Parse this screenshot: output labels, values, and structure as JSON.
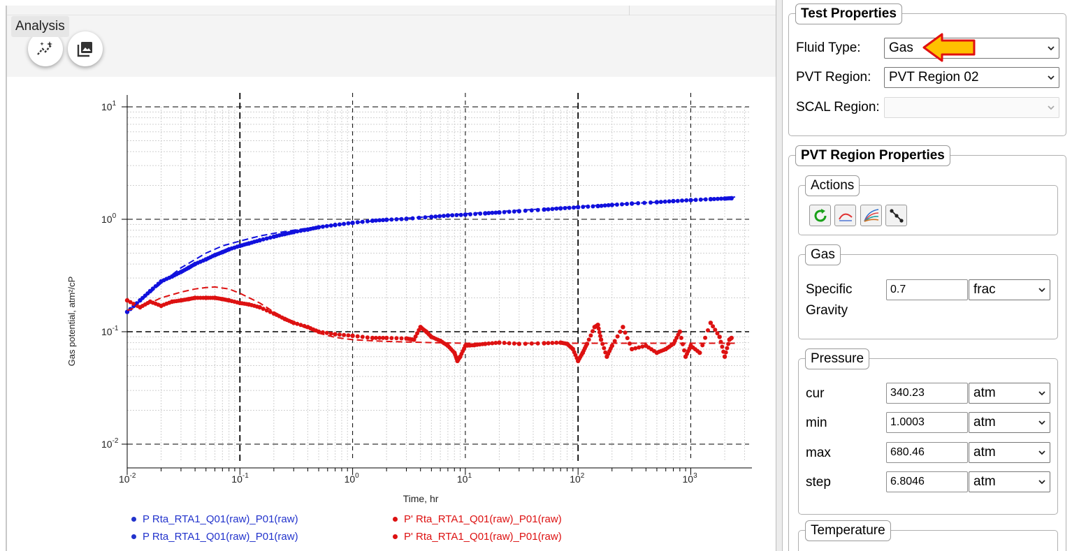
{
  "app": {
    "title": "Analysis"
  },
  "toolbar": {
    "wand_icon": "analysis-wand-icon",
    "image_icon": "image-icon"
  },
  "chart_data": {
    "type": "scatter",
    "xlabel": "Time, hr",
    "ylabel": "Gas potential, atm²/cP",
    "x_scale": "log",
    "y_scale": "log",
    "xlim": [
      0.01,
      3000
    ],
    "ylim": [
      0.01,
      10
    ],
    "x_ticks": [
      {
        "base": "10",
        "exp": "-2"
      },
      {
        "base": "10",
        "exp": "-1"
      },
      {
        "base": "10",
        "exp": "0"
      },
      {
        "base": "10",
        "exp": "1"
      },
      {
        "base": "10",
        "exp": "2"
      },
      {
        "base": "10",
        "exp": "3"
      }
    ],
    "y_ticks": [
      {
        "base": "10",
        "exp": "1"
      },
      {
        "base": "10",
        "exp": "0"
      },
      {
        "base": "10",
        "exp": "-1"
      },
      {
        "base": "10",
        "exp": "-2"
      }
    ],
    "grid": true,
    "series": [
      {
        "name": "P Rta_RTA1_Q01(raw)_P01(raw)",
        "color": "#1111dd",
        "style": "points",
        "x": [
          0.01,
          0.013,
          0.016,
          0.02,
          0.025,
          0.03,
          0.035,
          0.04,
          0.05,
          0.06,
          0.07,
          0.08,
          0.1,
          0.12,
          0.15,
          0.2,
          0.25,
          0.3,
          0.4,
          0.5,
          0.7,
          1,
          1.5,
          2,
          3,
          5,
          7,
          10,
          15,
          20,
          30,
          50,
          70,
          100,
          150,
          200,
          300,
          500,
          700,
          1000,
          1500,
          2000,
          2300
        ],
        "y": [
          0.15,
          0.19,
          0.23,
          0.28,
          0.31,
          0.34,
          0.37,
          0.4,
          0.44,
          0.48,
          0.51,
          0.54,
          0.58,
          0.61,
          0.65,
          0.7,
          0.74,
          0.77,
          0.81,
          0.85,
          0.89,
          0.93,
          0.97,
          0.99,
          1.01,
          1.05,
          1.08,
          1.1,
          1.13,
          1.15,
          1.18,
          1.22,
          1.25,
          1.28,
          1.31,
          1.34,
          1.38,
          1.42,
          1.45,
          1.48,
          1.51,
          1.53,
          1.54
        ]
      },
      {
        "name": "P' Rta_RTA1_Q01(raw)_P01(raw)",
        "color": "#dd1111",
        "style": "points",
        "x": [
          0.01,
          0.013,
          0.016,
          0.02,
          0.025,
          0.03,
          0.035,
          0.04,
          0.05,
          0.06,
          0.07,
          0.08,
          0.1,
          0.12,
          0.15,
          0.2,
          0.25,
          0.3,
          0.4,
          0.5,
          0.7,
          1,
          1.5,
          2,
          3,
          3.5,
          4,
          4.5,
          5,
          6,
          7,
          8,
          8.5,
          9,
          10,
          12,
          15,
          20,
          30,
          50,
          70,
          80,
          90,
          100,
          110,
          120,
          140,
          150,
          160,
          180,
          200,
          250,
          300,
          400,
          500,
          600,
          700,
          800,
          900,
          1000,
          1200,
          1500,
          1800,
          2000,
          2200,
          2300
        ],
        "y": [
          0.19,
          0.165,
          0.185,
          0.17,
          0.185,
          0.19,
          0.195,
          0.2,
          0.2,
          0.2,
          0.195,
          0.19,
          0.18,
          0.175,
          0.165,
          0.145,
          0.13,
          0.12,
          0.11,
          0.1,
          0.095,
          0.092,
          0.088,
          0.088,
          0.087,
          0.085,
          0.11,
          0.1,
          0.09,
          0.083,
          0.075,
          0.065,
          0.055,
          0.06,
          0.075,
          0.076,
          0.078,
          0.08,
          0.078,
          0.079,
          0.08,
          0.078,
          0.07,
          0.055,
          0.065,
          0.078,
          0.11,
          0.115,
          0.085,
          0.06,
          0.075,
          0.11,
          0.07,
          0.075,
          0.065,
          0.07,
          0.078,
          0.1,
          0.06,
          0.075,
          0.065,
          0.12,
          0.09,
          0.06,
          0.085,
          0.088
        ]
      },
      {
        "name": "P Rta_RTA1_Q01(raw)_P01(raw)",
        "color": "#1111dd",
        "style": "dashed",
        "x": [
          0.01,
          0.015,
          0.02,
          0.03,
          0.05,
          0.07,
          0.1,
          0.15,
          0.2,
          0.3,
          0.5,
          1,
          2,
          5,
          10,
          20,
          50,
          100,
          200,
          500,
          1000,
          2000,
          2500
        ],
        "y": [
          0.15,
          0.21,
          0.27,
          0.37,
          0.5,
          0.58,
          0.64,
          0.71,
          0.75,
          0.8,
          0.86,
          0.93,
          0.99,
          1.06,
          1.12,
          1.17,
          1.24,
          1.3,
          1.35,
          1.42,
          1.48,
          1.55,
          1.58
        ]
      },
      {
        "name": "P' Rta_RTA1_Q01(raw)_P01(raw)",
        "color": "#dd1111",
        "style": "dashed",
        "x": [
          0.01,
          0.015,
          0.02,
          0.03,
          0.04,
          0.05,
          0.06,
          0.08,
          0.1,
          0.15,
          0.2,
          0.3,
          0.5,
          0.7,
          1,
          1.5,
          2,
          3,
          5,
          10,
          20,
          50,
          100,
          200,
          500,
          1000,
          2000,
          2500
        ],
        "y": [
          0.155,
          0.175,
          0.2,
          0.225,
          0.24,
          0.247,
          0.25,
          0.24,
          0.22,
          0.18,
          0.15,
          0.12,
          0.097,
          0.089,
          0.085,
          0.083,
          0.082,
          0.081,
          0.08,
          0.079,
          0.079,
          0.079,
          0.079,
          0.079,
          0.079,
          0.079,
          0.079,
          0.079
        ]
      }
    ]
  },
  "legend_items": [
    {
      "text": "P Rta_RTA1_Q01(raw)_P01(raw)",
      "color": "#2233cc"
    },
    {
      "text": "P Rta_RTA1_Q01(raw)_P01(raw)",
      "color": "#2233cc"
    },
    {
      "text": "P' Rta_RTA1_Q01(raw)_P01(raw)",
      "color": "#dd1111"
    },
    {
      "text": "P' Rta_RTA1_Q01(raw)_P01(raw)",
      "color": "#dd1111"
    }
  ],
  "test_properties": {
    "title": "Test Properties",
    "fluid_type_label": "Fluid Type:",
    "fluid_type_value": "Gas",
    "pvt_region_label": "PVT Region:",
    "pvt_region_value": "PVT Region 02",
    "scal_region_label": "SCAL Region:",
    "scal_region_value": ""
  },
  "pvt_region_properties": {
    "title": "PVT Region Properties",
    "actions": {
      "title": "Actions",
      "icons": [
        "refresh-icon",
        "curve-icon",
        "multi-curve-icon",
        "points-line-icon"
      ]
    },
    "gas": {
      "title": "Gas",
      "specific_gravity_label_1": "Specific",
      "specific_gravity_label_2": "Gravity",
      "specific_gravity_value": "0.7",
      "specific_gravity_unit": "frac"
    },
    "pressure": {
      "title": "Pressure",
      "rows": [
        {
          "label": "cur",
          "value": "340.23",
          "unit": "atm"
        },
        {
          "label": "min",
          "value": "1.0003",
          "unit": "atm"
        },
        {
          "label": "max",
          "value": "680.46",
          "unit": "atm"
        },
        {
          "label": "step",
          "value": "6.8046",
          "unit": "atm"
        }
      ]
    },
    "temperature": {
      "title": "Temperature"
    }
  },
  "colors": {
    "accent_arrow": "#ffc000",
    "arrow_outline": "#e01010"
  }
}
